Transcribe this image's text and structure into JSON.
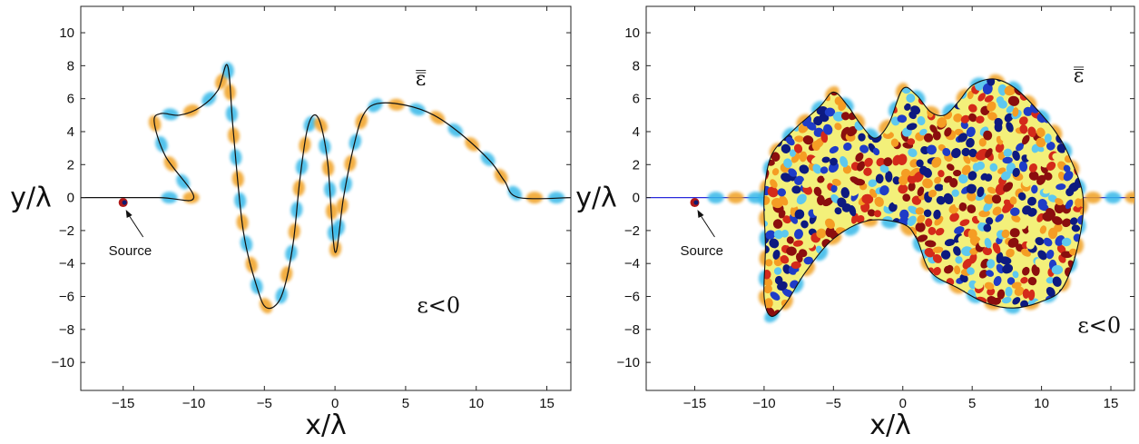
{
  "chart_data": [
    {
      "type": "field-map",
      "xlabel": "x/λ",
      "ylabel": "y/λ",
      "xlim": [
        -18,
        16.7
      ],
      "ylim": [
        -11.7,
        11.6
      ],
      "xticks": [
        "−15",
        "−10",
        "−5",
        "0",
        "5",
        "10",
        "15"
      ],
      "xtick_values": [
        -15,
        -10,
        -5,
        0,
        5,
        10,
        15
      ],
      "yticks": [
        "10",
        "8",
        "6",
        "4",
        "2",
        "0",
        "−2",
        "−4",
        "−6",
        "−8",
        "−10"
      ],
      "ytick_values": [
        10,
        8,
        6,
        4,
        2,
        0,
        -2,
        -4,
        -6,
        -8,
        -10
      ],
      "source_label": "Source",
      "source_position": [
        -15,
        -0.3
      ],
      "region_label_upper": "ε̿",
      "region_label_lower": "ε<0",
      "interface_curve": [
        [
          -18,
          0
        ],
        [
          -12.5,
          0
        ],
        [
          -10,
          0
        ],
        [
          -12,
          2.5
        ],
        [
          -12.8,
          4.6
        ],
        [
          -12.3,
          5.1
        ],
        [
          -11,
          5
        ],
        [
          -9.5,
          5.5
        ],
        [
          -8.3,
          6.5
        ],
        [
          -7.6,
          8
        ],
        [
          -7.2,
          4
        ],
        [
          -6.5,
          -2
        ],
        [
          -5.5,
          -5.5
        ],
        [
          -4.8,
          -6.7
        ],
        [
          -3.8,
          -6
        ],
        [
          -3,
          -3
        ],
        [
          -2.5,
          1
        ],
        [
          -2,
          4
        ],
        [
          -1.5,
          5
        ],
        [
          -1,
          4.4
        ],
        [
          -0.5,
          2
        ],
        [
          0,
          -3.3
        ],
        [
          0.6,
          0
        ],
        [
          1.3,
          3
        ],
        [
          2,
          5
        ],
        [
          3,
          5.7
        ],
        [
          5,
          5.6
        ],
        [
          7,
          5
        ],
        [
          9,
          3.8
        ],
        [
          11,
          2.2
        ],
        [
          12,
          1
        ],
        [
          13,
          0
        ],
        [
          16.7,
          0
        ]
      ],
      "surface_wave_colors": [
        "#f0a020",
        "#35b8e8"
      ]
    },
    {
      "type": "field-map",
      "xlabel": "x/λ",
      "ylabel": "y/λ",
      "xlim": [
        -18.5,
        16.7
      ],
      "ylim": [
        -11.7,
        11.6
      ],
      "xticks": [
        "−15",
        "−10",
        "−5",
        "0",
        "5",
        "10",
        "15"
      ],
      "xtick_values": [
        -15,
        -10,
        -5,
        0,
        5,
        10,
        15
      ],
      "yticks": [
        "10",
        "8",
        "6",
        "4",
        "2",
        "0",
        "−2",
        "−4",
        "−6",
        "−8",
        "−10"
      ],
      "ytick_values": [
        10,
        8,
        6,
        4,
        2,
        0,
        -2,
        -4,
        -6,
        -8,
        -10
      ],
      "source_label": "Source",
      "source_position": [
        -15,
        -0.3
      ],
      "region_label_upper": "ε̿",
      "region_label_lower": "ε<0",
      "region_boundary": [
        [
          -10,
          0
        ],
        [
          -9.5,
          2.5
        ],
        [
          -8,
          4
        ],
        [
          -6,
          5.5
        ],
        [
          -5,
          6.4
        ],
        [
          -4,
          5.6
        ],
        [
          -3,
          4.4
        ],
        [
          -2,
          3.6
        ],
        [
          -1,
          4.5
        ],
        [
          0,
          6.6
        ],
        [
          1,
          6.2
        ],
        [
          2,
          5.2
        ],
        [
          3,
          5
        ],
        [
          4,
          5.8
        ],
        [
          5,
          6.8
        ],
        [
          6.5,
          7.2
        ],
        [
          8,
          6.7
        ],
        [
          9.5,
          5.5
        ],
        [
          11,
          4
        ],
        [
          12,
          2.5
        ],
        [
          13,
          0
        ],
        [
          12.6,
          -3
        ],
        [
          11.5,
          -5.5
        ],
        [
          10,
          -6.3
        ],
        [
          8,
          -6.7
        ],
        [
          6,
          -6.4
        ],
        [
          4,
          -5.5
        ],
        [
          2,
          -4.5
        ],
        [
          1,
          -2.5
        ],
        [
          0,
          -1.6
        ],
        [
          -2.5,
          -1.4
        ],
        [
          -5,
          -2.5
        ],
        [
          -7,
          -4.5
        ],
        [
          -8.5,
          -6.5
        ],
        [
          -9.5,
          -7.2
        ],
        [
          -10,
          -6
        ],
        [
          -9.9,
          -3
        ]
      ],
      "guide_line_color": "#2a2adc",
      "surface_wave_colors": [
        "#f0a020",
        "#35b8e8"
      ],
      "interior_colors": [
        "#8b0e0e",
        "#d42a1a",
        "#f59d24",
        "#f3f07a",
        "#5ec8ef",
        "#1f3cc7",
        "#0d1a80"
      ]
    }
  ]
}
